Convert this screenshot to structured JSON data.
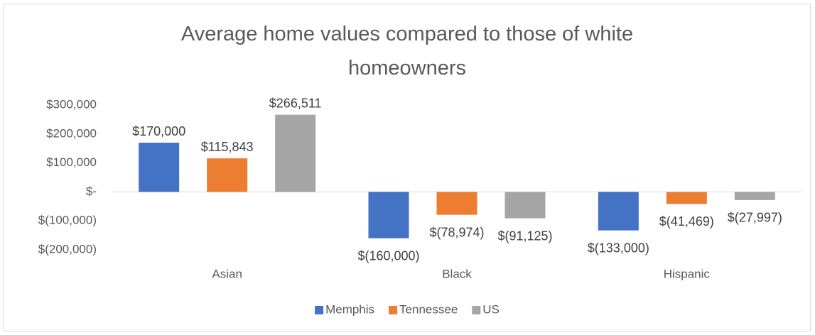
{
  "chart_data": {
    "type": "bar",
    "title": "Average home values compared to those of white homeowners",
    "categories": [
      "Asian",
      "Black",
      "Hispanic"
    ],
    "series": [
      {
        "name": "Memphis",
        "color": "#4472c4",
        "values": [
          170000,
          -160000,
          -133000
        ],
        "value_labels": [
          "$170,000",
          "$(160,000)",
          "$(133,000)"
        ]
      },
      {
        "name": "Tennessee",
        "color": "#ed7d31",
        "values": [
          115843,
          -78974,
          -41469
        ],
        "value_labels": [
          "$115,843",
          "$(78,974)",
          "$(41,469)"
        ]
      },
      {
        "name": "US",
        "color": "#a5a5a5",
        "values": [
          266511,
          -91125,
          -27997
        ],
        "value_labels": [
          "$266,511",
          "$(91,125)",
          "$(27,997)"
        ]
      }
    ],
    "ylim": [
      -200000,
      300000
    ],
    "yticks": [
      {
        "value": -200000,
        "label": "$(200,000)"
      },
      {
        "value": -100000,
        "label": "$(100,000)"
      },
      {
        "value": 0,
        "label": "$-"
      },
      {
        "value": 100000,
        "label": "$100,000"
      },
      {
        "value": 200000,
        "label": "$200,000"
      },
      {
        "value": 300000,
        "label": "$300,000"
      }
    ],
    "grid": false,
    "legend": "bottom"
  }
}
